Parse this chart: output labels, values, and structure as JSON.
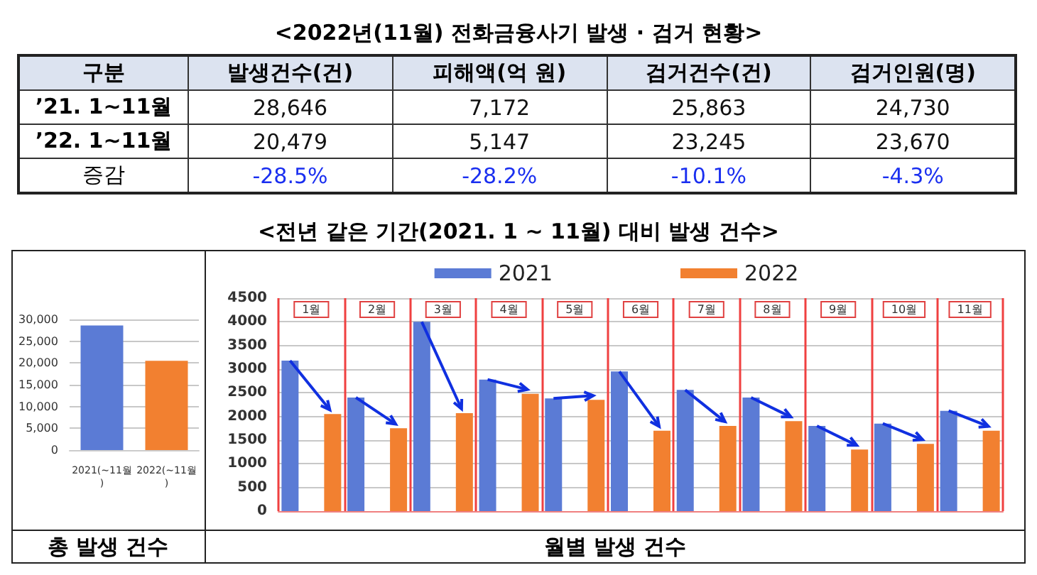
{
  "chart_data": [
    {
      "type": "other",
      "title": "<2022년(11월) 전화금융사기 발생 · 검거 현황>",
      "annotations": [
        "구분"
      ],
      "categories": [
        "발생건수(건)",
        "피해액(억 원)",
        "검거건수(건)",
        "검거인원(명)"
      ],
      "y_categories": [
        "’21. 1~11월",
        "’22. 1~11월",
        "증감"
      ],
      "cell_labels": [
        [
          "28,646",
          "7,172",
          "25,863",
          "24,730"
        ],
        [
          "20,479",
          "5,147",
          "23,245",
          "23,670"
        ],
        [
          "-28.5%",
          "-28.2%",
          "-10.1%",
          "-4.3%"
        ]
      ]
    },
    {
      "type": "bar",
      "xlabel": "총 발생 건수",
      "categories": [
        "2021(~11월)",
        "2022(~11월)"
      ],
      "values": [
        28600,
        20500
      ],
      "colors": [
        "#5b7bd5",
        "#f28030"
      ],
      "ylim": [
        0,
        30000
      ],
      "yticks": [
        {
          "value": 0,
          "label": "0"
        },
        {
          "value": 5000,
          "label": "5,000"
        },
        {
          "value": 10000,
          "label": "10,000"
        },
        {
          "value": 15000,
          "label": "15,000"
        },
        {
          "value": 20000,
          "label": "20,000"
        },
        {
          "value": 25000,
          "label": "25,000"
        },
        {
          "value": 30000,
          "label": "30,000"
        }
      ],
      "grid": "y"
    },
    {
      "type": "bar",
      "title": "<전년 같은 기간(2021. 1 ~ 11월) 대비 발생 건수>",
      "xlabel": "월별 발생 건수",
      "categories": [
        "1월",
        "2월",
        "3월",
        "4월",
        "5월",
        "6월",
        "7월",
        "8월",
        "9월",
        "10월",
        "11월"
      ],
      "series": [
        {
          "name": "2021",
          "color": "#5b7bd5",
          "values": [
            3180,
            2400,
            4000,
            2780,
            2380,
            2950,
            2560,
            2400,
            1800,
            1850,
            2120
          ]
        },
        {
          "name": "2022",
          "color": "#f28030",
          "values": [
            2050,
            1750,
            2070,
            2480,
            2350,
            1700,
            1800,
            1900,
            1300,
            1420,
            1700
          ]
        }
      ],
      "ylim": [
        0,
        4500
      ],
      "yticks": [
        0,
        500,
        1000,
        1500,
        2000,
        2500,
        3000,
        3500,
        4000,
        4500
      ],
      "grid": true,
      "legend": "top"
    }
  ]
}
